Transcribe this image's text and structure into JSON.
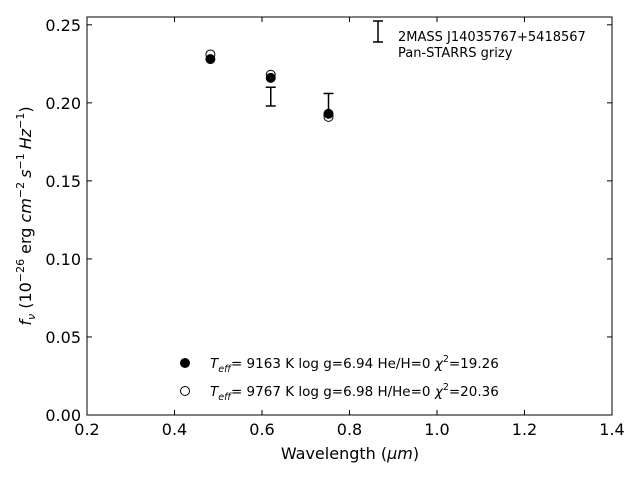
{
  "chart_data": {
    "type": "scatter",
    "xlabel_text": "Wavelength (",
    "xlabel_unit": "μm",
    "xlabel_close": ")",
    "ylabel": {
      "f": "f",
      "nu": "ν",
      "open": " (10",
      "exp26": "−26",
      "erg": " erg ",
      "cm": "cm",
      "exp2": "−2",
      "s": "s",
      "exp1a": "−1",
      "hz": "Hz",
      "exp1b": "−1",
      "close": ")"
    },
    "xlim": [
      0.2,
      1.4
    ],
    "ylim": [
      0.0,
      0.255
    ],
    "xticks": [
      0.2,
      0.4,
      0.6,
      0.8,
      1.0,
      1.2,
      1.4
    ],
    "xtick_labels": [
      "0.2",
      "0.4",
      "0.6",
      "0.8",
      "1.0",
      "1.2",
      "1.4"
    ],
    "yticks": [
      0.0,
      0.05,
      0.1,
      0.15,
      0.2,
      0.25
    ],
    "ytick_labels": [
      "0.00",
      "0.05",
      "0.10",
      "0.15",
      "0.20",
      "0.25"
    ],
    "annotation": [
      "2MASS J14035767+5418567",
      "Pan-STARRS grizy"
    ],
    "observed": [
      {
        "x": 0.62,
        "y": 0.204,
        "yerr": 0.006
      },
      {
        "x": 0.752,
        "y": 0.199,
        "yerr": 0.007
      }
    ],
    "series": [
      {
        "marker": "filled",
        "x": [
          0.482,
          0.62,
          0.752
        ],
        "y": [
          0.228,
          0.216,
          0.193
        ],
        "legend": {
          "T": "T",
          "eff": "eff",
          "mid": "=  9163 K  log g=6.94  He/H=0  ",
          "chi": "χ",
          "two": "2",
          "chival": "=19.26"
        }
      },
      {
        "marker": "open",
        "x": [
          0.482,
          0.62,
          0.752
        ],
        "y": [
          0.231,
          0.218,
          0.191
        ],
        "legend": {
          "T": "T",
          "eff": "eff",
          "mid": "=  9767 K  log g=6.98  H/He=0  ",
          "chi": "χ",
          "two": "2",
          "chival": "=20.36"
        }
      }
    ],
    "legend_position": "lower-center",
    "grid": false
  }
}
